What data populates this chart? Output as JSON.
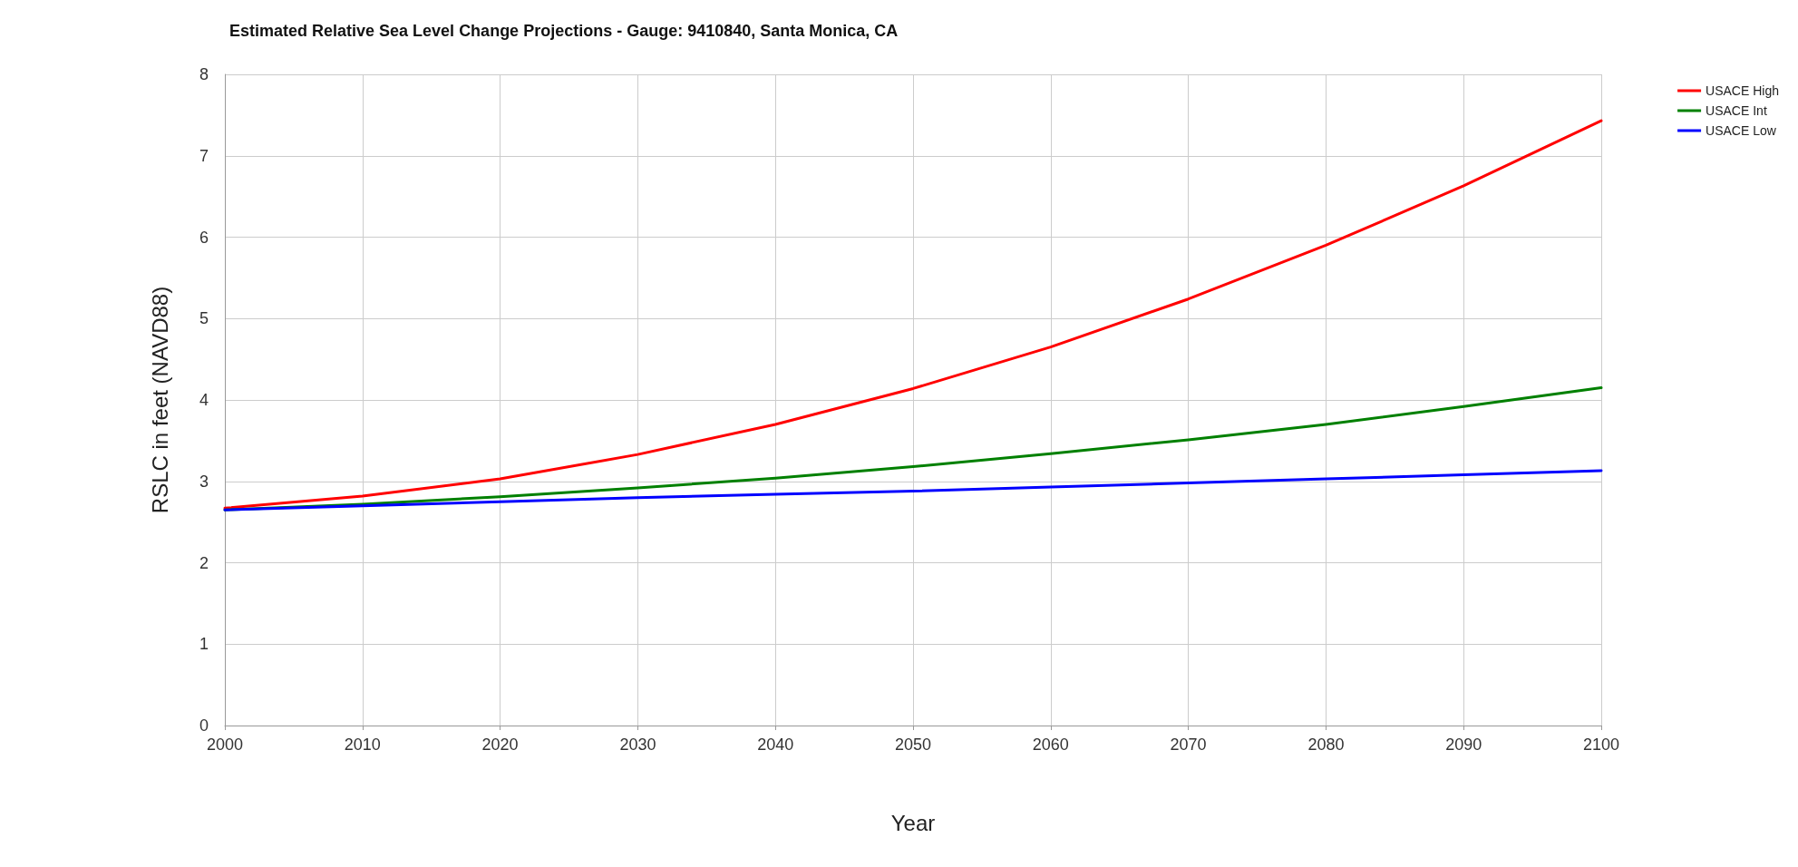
{
  "chart_data": {
    "type": "line",
    "title": "Estimated Relative Sea Level Change Projections - Gauge: 9410840, Santa Monica, CA",
    "xlabel": "Year",
    "ylabel": "RSLC in feet (NAVD88)",
    "x": [
      2000,
      2010,
      2020,
      2030,
      2040,
      2050,
      2060,
      2070,
      2080,
      2090,
      2100
    ],
    "series": [
      {
        "name": "USACE High",
        "color": "#ff0000",
        "values": [
          2.67,
          2.82,
          3.03,
          3.33,
          3.7,
          4.14,
          4.65,
          5.24,
          5.9,
          6.63,
          7.43
        ]
      },
      {
        "name": "USACE Int",
        "color": "#008000",
        "values": [
          2.65,
          2.72,
          2.81,
          2.92,
          3.04,
          3.18,
          3.34,
          3.51,
          3.7,
          3.92,
          4.15
        ]
      },
      {
        "name": "USACE Low",
        "color": "#0000ff",
        "values": [
          2.65,
          2.7,
          2.75,
          2.8,
          2.84,
          2.88,
          2.93,
          2.98,
          3.03,
          3.08,
          3.13
        ]
      }
    ],
    "xlim": [
      2000,
      2100
    ],
    "xticks": [
      2000,
      2010,
      2020,
      2030,
      2040,
      2050,
      2060,
      2070,
      2080,
      2090,
      2100
    ],
    "ylim": [
      0,
      8
    ],
    "yticks": [
      0,
      1,
      2,
      3,
      4,
      5,
      6,
      7,
      8
    ],
    "grid": true,
    "legend": "top right",
    "marker": "none",
    "line_style": "solid"
  }
}
